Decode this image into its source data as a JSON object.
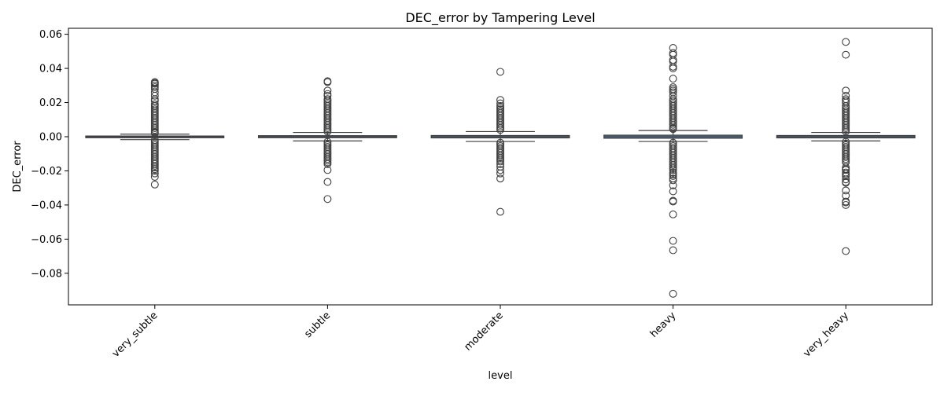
{
  "chart_data": {
    "type": "box",
    "title": "DEC_error by Tampering Level",
    "xlabel": "level",
    "ylabel": "DEC_error",
    "categories": [
      "very_subtle",
      "subtle",
      "moderate",
      "heavy",
      "very_heavy"
    ],
    "ylim": [
      -0.0985,
      0.0635
    ],
    "yticks": [
      -0.08,
      -0.06,
      -0.04,
      -0.02,
      0.0,
      0.02,
      0.04,
      0.06
    ],
    "ytick_labels": [
      "−0.08",
      "−0.06",
      "−0.04",
      "−0.02",
      "0.00",
      "0.02",
      "0.04",
      "0.06"
    ],
    "box_color": "#5b7ea3",
    "edge_color": "#3f3f3f",
    "grid": false,
    "legend": "none",
    "boxes": [
      {
        "category": "very_subtle",
        "q1": -0.0004,
        "median": 0.0,
        "q3": 0.0004,
        "whisker_low": -0.0017,
        "whisker_high": 0.0015,
        "outliers": [
          0.032,
          0.0315,
          0.031,
          0.03,
          0.029,
          0.028,
          0.026,
          0.024,
          0.022,
          0.021,
          0.019,
          0.018,
          0.017,
          0.016,
          0.015,
          0.014,
          0.013,
          0.012,
          0.011,
          0.01,
          0.009,
          0.008,
          0.007,
          0.006,
          0.005,
          0.004,
          0.003,
          0.0025,
          0.002,
          -0.002,
          -0.003,
          -0.004,
          -0.005,
          -0.006,
          -0.007,
          -0.008,
          -0.009,
          -0.01,
          -0.011,
          -0.012,
          -0.013,
          -0.014,
          -0.015,
          -0.016,
          -0.017,
          -0.018,
          -0.019,
          -0.02,
          -0.0215,
          -0.0235,
          -0.028
        ]
      },
      {
        "category": "subtle",
        "q1": -0.0006,
        "median": 0.0,
        "q3": 0.0006,
        "whisker_low": -0.0025,
        "whisker_high": 0.0025,
        "outliers": [
          0.0325,
          0.032,
          0.027,
          0.025,
          0.024,
          0.022,
          0.021,
          0.02,
          0.019,
          0.018,
          0.017,
          0.016,
          0.015,
          0.014,
          0.013,
          0.012,
          0.011,
          0.01,
          0.009,
          0.008,
          0.007,
          0.006,
          0.005,
          0.004,
          0.003,
          -0.003,
          -0.004,
          -0.005,
          -0.006,
          -0.007,
          -0.008,
          -0.009,
          -0.01,
          -0.011,
          -0.012,
          -0.013,
          -0.014,
          -0.015,
          -0.016,
          -0.0195,
          -0.0265,
          -0.0365
        ]
      },
      {
        "category": "moderate",
        "q1": -0.0007,
        "median": 0.0,
        "q3": 0.0007,
        "whisker_low": -0.0028,
        "whisker_high": 0.003,
        "outliers": [
          0.038,
          0.0215,
          0.0195,
          0.018,
          0.017,
          0.016,
          0.015,
          0.014,
          0.013,
          0.012,
          0.011,
          0.01,
          0.009,
          0.008,
          0.007,
          0.006,
          0.005,
          0.004,
          -0.0035,
          -0.0045,
          -0.0055,
          -0.0065,
          -0.0075,
          -0.0085,
          -0.0095,
          -0.0105,
          -0.0115,
          -0.0125,
          -0.0135,
          -0.0145,
          -0.016,
          -0.0175,
          -0.0195,
          -0.0215,
          -0.0245,
          -0.044
        ]
      },
      {
        "category": "heavy",
        "q1": -0.0009,
        "median": 0.0,
        "q3": 0.0009,
        "whisker_low": -0.0028,
        "whisker_high": 0.0036,
        "outliers": [
          0.052,
          0.049,
          0.048,
          0.045,
          0.044,
          0.041,
          0.04,
          0.034,
          0.029,
          0.028,
          0.027,
          0.026,
          0.024,
          0.022,
          0.021,
          0.02,
          0.019,
          0.018,
          0.017,
          0.016,
          0.015,
          0.014,
          0.013,
          0.012,
          0.011,
          0.01,
          0.009,
          0.008,
          0.007,
          0.006,
          0.005,
          0.0045,
          -0.0035,
          -0.0045,
          -0.0055,
          -0.0065,
          -0.0075,
          -0.0085,
          -0.0095,
          -0.0105,
          -0.0115,
          -0.0125,
          -0.0135,
          -0.0145,
          -0.0155,
          -0.0165,
          -0.0175,
          -0.0185,
          -0.0195,
          -0.021,
          -0.022,
          -0.023,
          -0.0245,
          -0.0255,
          -0.0285,
          -0.032,
          -0.0375,
          -0.038,
          -0.0455,
          -0.061,
          -0.0665,
          -0.092
        ]
      },
      {
        "category": "very_heavy",
        "q1": -0.0007,
        "median": 0.0,
        "q3": 0.0007,
        "whisker_low": -0.0025,
        "whisker_high": 0.0025,
        "outliers": [
          0.0555,
          0.048,
          0.027,
          0.024,
          0.022,
          0.021,
          0.02,
          0.018,
          0.017,
          0.016,
          0.015,
          0.014,
          0.013,
          0.012,
          0.011,
          0.01,
          0.009,
          0.008,
          0.007,
          0.006,
          0.005,
          0.004,
          0.003,
          -0.003,
          -0.004,
          -0.005,
          -0.006,
          -0.007,
          -0.008,
          -0.009,
          -0.01,
          -0.011,
          -0.012,
          -0.013,
          -0.014,
          -0.015,
          -0.018,
          -0.019,
          -0.0195,
          -0.021,
          -0.022,
          -0.023,
          -0.025,
          -0.0265,
          -0.027,
          -0.0315,
          -0.0345,
          -0.038,
          -0.0385,
          -0.04,
          -0.067
        ]
      }
    ]
  }
}
